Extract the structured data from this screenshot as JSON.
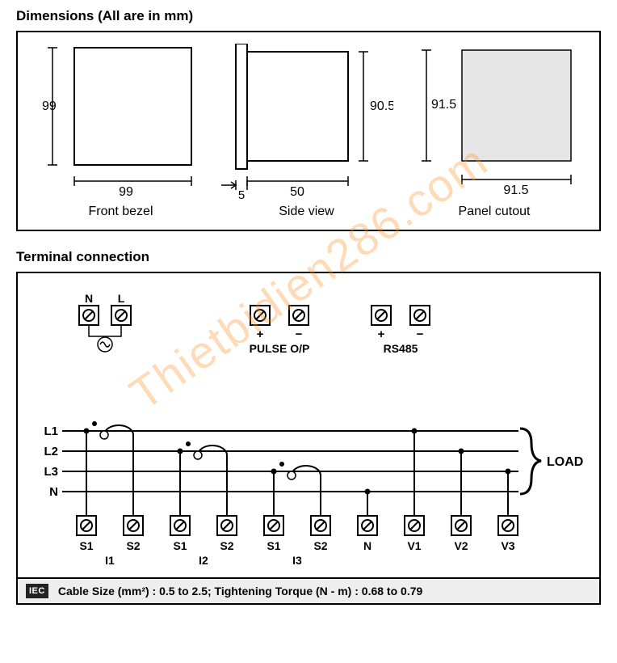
{
  "colors": {
    "stroke": "#000000",
    "fill_light": "#f2f2f2",
    "background": "#ffffff",
    "watermark": "rgba(255,150,50,0.35)"
  },
  "font_sizes": {
    "title": 17,
    "label": 16,
    "small": 14,
    "terminal_label": 13
  },
  "dimensions_section": {
    "title": "Dimensions (All are in mm)",
    "views": {
      "front": {
        "label": "Front bezel",
        "width_mm": "99",
        "height_mm": "99"
      },
      "side": {
        "label": "Side view",
        "body_width_mm": "50",
        "flange_width_mm": "5",
        "height_mm": "90.5"
      },
      "cutout": {
        "label": "Panel cutout",
        "width_mm": "91.5",
        "height_mm": "91.5"
      }
    }
  },
  "terminal_section": {
    "title": "Terminal connection",
    "power": {
      "neutral_label": "N",
      "line_label": "L"
    },
    "pulse": {
      "group_label": "PULSE O/P",
      "pos_label": "+",
      "neg_label": "−"
    },
    "rs485": {
      "group_label": "RS485",
      "pos_label": "+",
      "neg_label": "−"
    },
    "lines": {
      "l1": "L1",
      "l2": "L2",
      "l3": "L3",
      "n": "N",
      "load": "LOAD"
    },
    "bottom_terminals": [
      "S1",
      "S2",
      "S1",
      "S2",
      "S1",
      "S2",
      "N",
      "V1",
      "V2",
      "V3"
    ],
    "ct_groups": [
      "I1",
      "I2",
      "I3"
    ],
    "footer": {
      "badge": "IEC",
      "text": "Cable Size (mm²) : 0.5 to 2.5; Tightening Torque (N - m) : 0.68 to 0.79"
    }
  },
  "watermark_text": "Thietbidien286.com"
}
